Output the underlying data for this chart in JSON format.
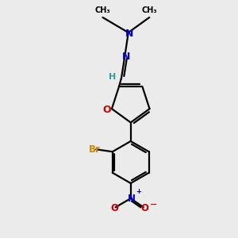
{
  "bg_color": "#ebebeb",
  "bond_color": "#000000",
  "n_color": "#0000cc",
  "o_color": "#cc0000",
  "br_color": "#cc8800",
  "h_color": "#339999",
  "figsize": [
    3.0,
    3.0
  ],
  "dpi": 100,
  "xlim": [
    0,
    10
  ],
  "ylim": [
    0,
    10
  ]
}
